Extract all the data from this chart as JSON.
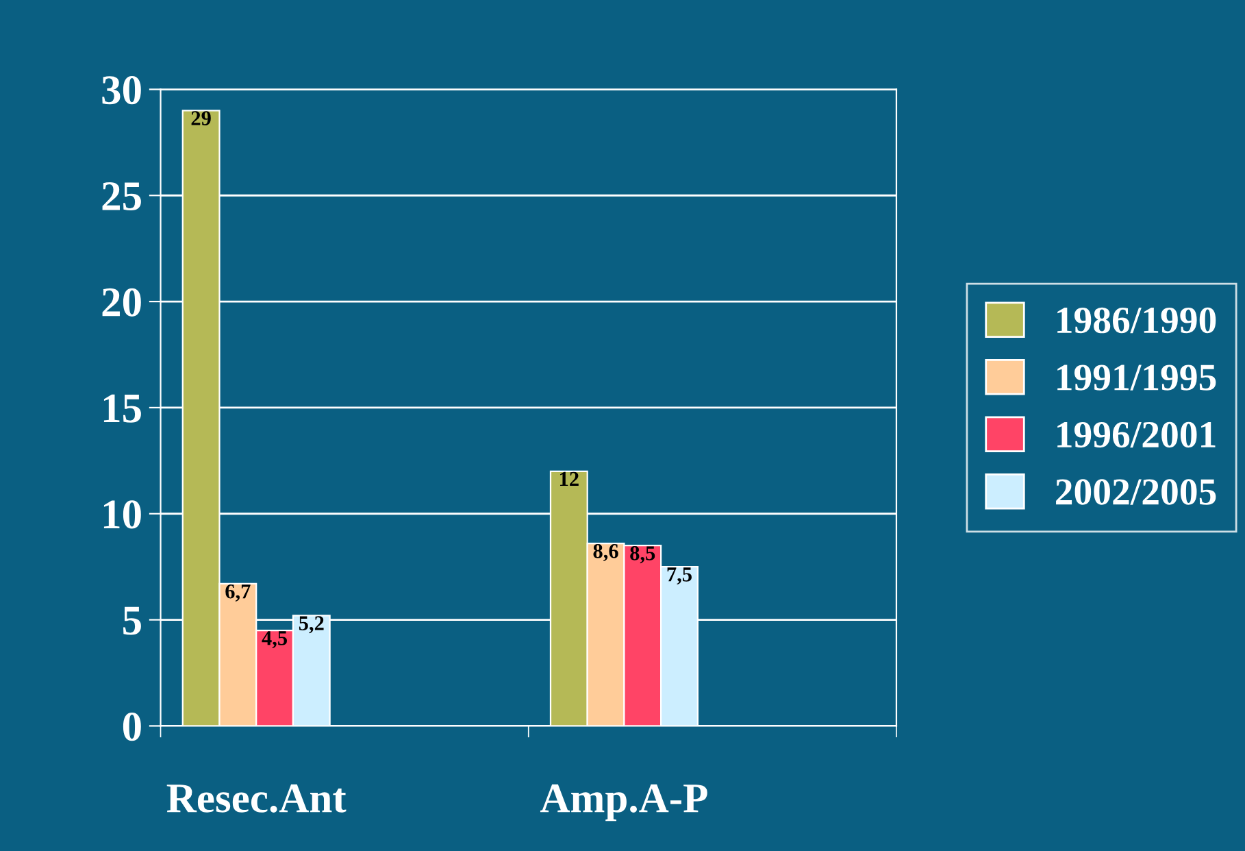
{
  "chart_data": {
    "type": "bar",
    "categories": [
      "Resec.Ant",
      "Amp.A-P"
    ],
    "series": [
      {
        "name": "1986/1990",
        "color": "#b5b956",
        "values": [
          29,
          12
        ],
        "value_labels": [
          "29",
          "12"
        ]
      },
      {
        "name": "1991/1995",
        "color": "#ffcc99",
        "values": [
          6.7,
          8.6
        ],
        "value_labels": [
          "6,7",
          "8,6"
        ]
      },
      {
        "name": "1996/2001",
        "color": "#ff4466",
        "values": [
          4.5,
          8.5
        ],
        "value_labels": [
          "4,5",
          "8,5"
        ]
      },
      {
        "name": "2002/2005",
        "color": "#cceeff",
        "values": [
          5.2,
          7.5
        ],
        "value_labels": [
          "5,2",
          "7,5"
        ]
      }
    ],
    "ylim": [
      0,
      30
    ],
    "yticks": [
      0,
      5,
      10,
      15,
      20,
      25,
      30
    ],
    "grid": "y",
    "legend": "right"
  }
}
